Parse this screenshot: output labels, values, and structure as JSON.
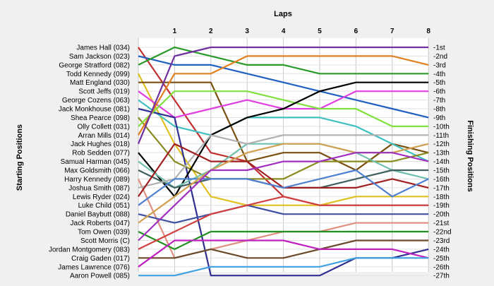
{
  "chart_data": {
    "type": "line",
    "title": "",
    "xlabel": "Laps",
    "y_left_label": "Starting Positions",
    "y_right_label": "Finishing Positions",
    "x": [
      0,
      1,
      2,
      3,
      4,
      5,
      6,
      7,
      8
    ],
    "x_tick_labels": [
      "1",
      "2",
      "3",
      "4",
      "5",
      "6",
      "7",
      "8"
    ],
    "y_range": [
      1,
      27
    ],
    "y_inverted": true,
    "grid": true,
    "finishing_labels": [
      "1st",
      "2nd",
      "3rd",
      "4th",
      "5th",
      "6th",
      "7th",
      "8th",
      "9th",
      "10th",
      "11th",
      "12th",
      "13th",
      "14th",
      "15th",
      "16th",
      "17th",
      "18th",
      "19th",
      "20th",
      "21st",
      "22nd",
      "23rd",
      "24th",
      "25th",
      "26th",
      "27th"
    ],
    "series": [
      {
        "name": "James Hall (034)",
        "color": "#c03030",
        "values": [
          1,
          7,
          13,
          14,
          18,
          19,
          19,
          19,
          19
        ]
      },
      {
        "name": "Sam Jackson (023)",
        "color": "#2060c0",
        "values": [
          2,
          3,
          3,
          4,
          5,
          6,
          7,
          8,
          9
        ]
      },
      {
        "name": "George Stratford (082)",
        "color": "#2a9a2a",
        "values": [
          3,
          1,
          2,
          3,
          3,
          4,
          4,
          4,
          4
        ]
      },
      {
        "name": "Todd Kennedy (099)",
        "color": "#e0c020",
        "values": [
          4,
          12,
          18,
          19,
          19,
          19,
          18,
          18,
          18
        ]
      },
      {
        "name": "Matt England (030)",
        "color": "#7a5010",
        "values": [
          5,
          5,
          5,
          14,
          13,
          13,
          15,
          12,
          13
        ]
      },
      {
        "name": "Scott Jeffs (019)",
        "color": "#e040e0",
        "values": [
          6,
          9,
          8,
          7,
          8,
          8,
          6,
          6,
          6
        ]
      },
      {
        "name": "George Cozens (063)",
        "color": "#40c0c0",
        "values": [
          7,
          10,
          11,
          9,
          9,
          9,
          10,
          12,
          14
        ]
      },
      {
        "name": "Jack Monkhouse (081)",
        "color": "#303090",
        "values": [
          8,
          9,
          27,
          27,
          27,
          27,
          25,
          25,
          24
        ]
      },
      {
        "name": "Shea Pearce (098)",
        "color": "#8a8a20",
        "values": [
          9,
          14,
          16,
          16,
          16,
          14,
          14,
          14,
          13
        ]
      },
      {
        "name": "Olly Collett (031)",
        "color": "#80e040",
        "values": [
          10,
          6,
          6,
          6,
          7,
          8,
          8,
          10,
          10
        ]
      },
      {
        "name": "Arran Mills (014)",
        "color": "#e08020",
        "values": [
          11,
          4,
          4,
          2,
          2,
          2,
          2,
          2,
          3
        ]
      },
      {
        "name": "Jack Hughes (018)",
        "color": "#7030a0",
        "values": [
          12,
          2,
          1,
          1,
          1,
          1,
          1,
          1,
          1
        ]
      },
      {
        "name": "Rob Sedden (077)",
        "color": "#000000",
        "values": [
          13,
          18,
          11,
          9,
          8,
          6,
          5,
          5,
          5
        ]
      },
      {
        "name": "Samual Harman (045)",
        "color": "#70c0b0",
        "values": [
          14,
          17,
          15,
          12,
          12,
          12,
          13,
          15,
          16
        ]
      },
      {
        "name": "Max Goldsmith (066)",
        "color": "#406060",
        "values": [
          15,
          17,
          16,
          16,
          17,
          17,
          16,
          15,
          15
        ]
      },
      {
        "name": "Harry Kennedy (089)",
        "color": "#e09080",
        "values": [
          16,
          25,
          24,
          23,
          22,
          22,
          21,
          21,
          21
        ]
      },
      {
        "name": "Joshua Smith (087)",
        "color": "#b0b0b0",
        "values": [
          17,
          16,
          11,
          12,
          11,
          11,
          11,
          11,
          11
        ]
      },
      {
        "name": "Lewis Ryder (024)",
        "color": "#a02020",
        "values": [
          18,
          12,
          14,
          14,
          17,
          17,
          17,
          16,
          17
        ]
      },
      {
        "name": "Luke Child (051)",
        "color": "#5080d0",
        "values": [
          19,
          16,
          16,
          16,
          17,
          16,
          15,
          18,
          16
        ]
      },
      {
        "name": "Daniel Baybutt (088)",
        "color": "#4050a0",
        "values": [
          20,
          21,
          20,
          19,
          20,
          20,
          20,
          20,
          20
        ]
      },
      {
        "name": "Jack Roberts (047)",
        "color": "#d0a050",
        "values": [
          21,
          18,
          15,
          13,
          12,
          12,
          13,
          13,
          12
        ]
      },
      {
        "name": "Tom Owen (039)",
        "color": "#209020",
        "values": [
          22,
          24,
          22,
          22,
          22,
          22,
          22,
          22,
          22
        ]
      },
      {
        "name": "Scott Morris (C)",
        "color": "#a030c0",
        "values": [
          23,
          19,
          15,
          15,
          14,
          14,
          13,
          13,
          14
        ]
      },
      {
        "name": "Jordan Montgomery (083)",
        "color": "#d04040",
        "values": [
          24,
          22,
          20,
          19,
          18,
          19,
          19,
          19,
          19
        ]
      },
      {
        "name": "Craig Gaden (017)",
        "color": "#6a4a2a",
        "values": [
          25,
          25,
          24,
          25,
          25,
          24,
          23,
          23,
          23
        ]
      },
      {
        "name": "James Lawrence (076)",
        "color": "#c020c0",
        "values": [
          26,
          23,
          23,
          23,
          23,
          24,
          24,
          24,
          25
        ]
      },
      {
        "name": "Aaron Powell (085)",
        "color": "#40a0e0",
        "values": [
          27,
          27,
          26,
          26,
          26,
          26,
          25,
          25,
          25
        ]
      }
    ]
  }
}
